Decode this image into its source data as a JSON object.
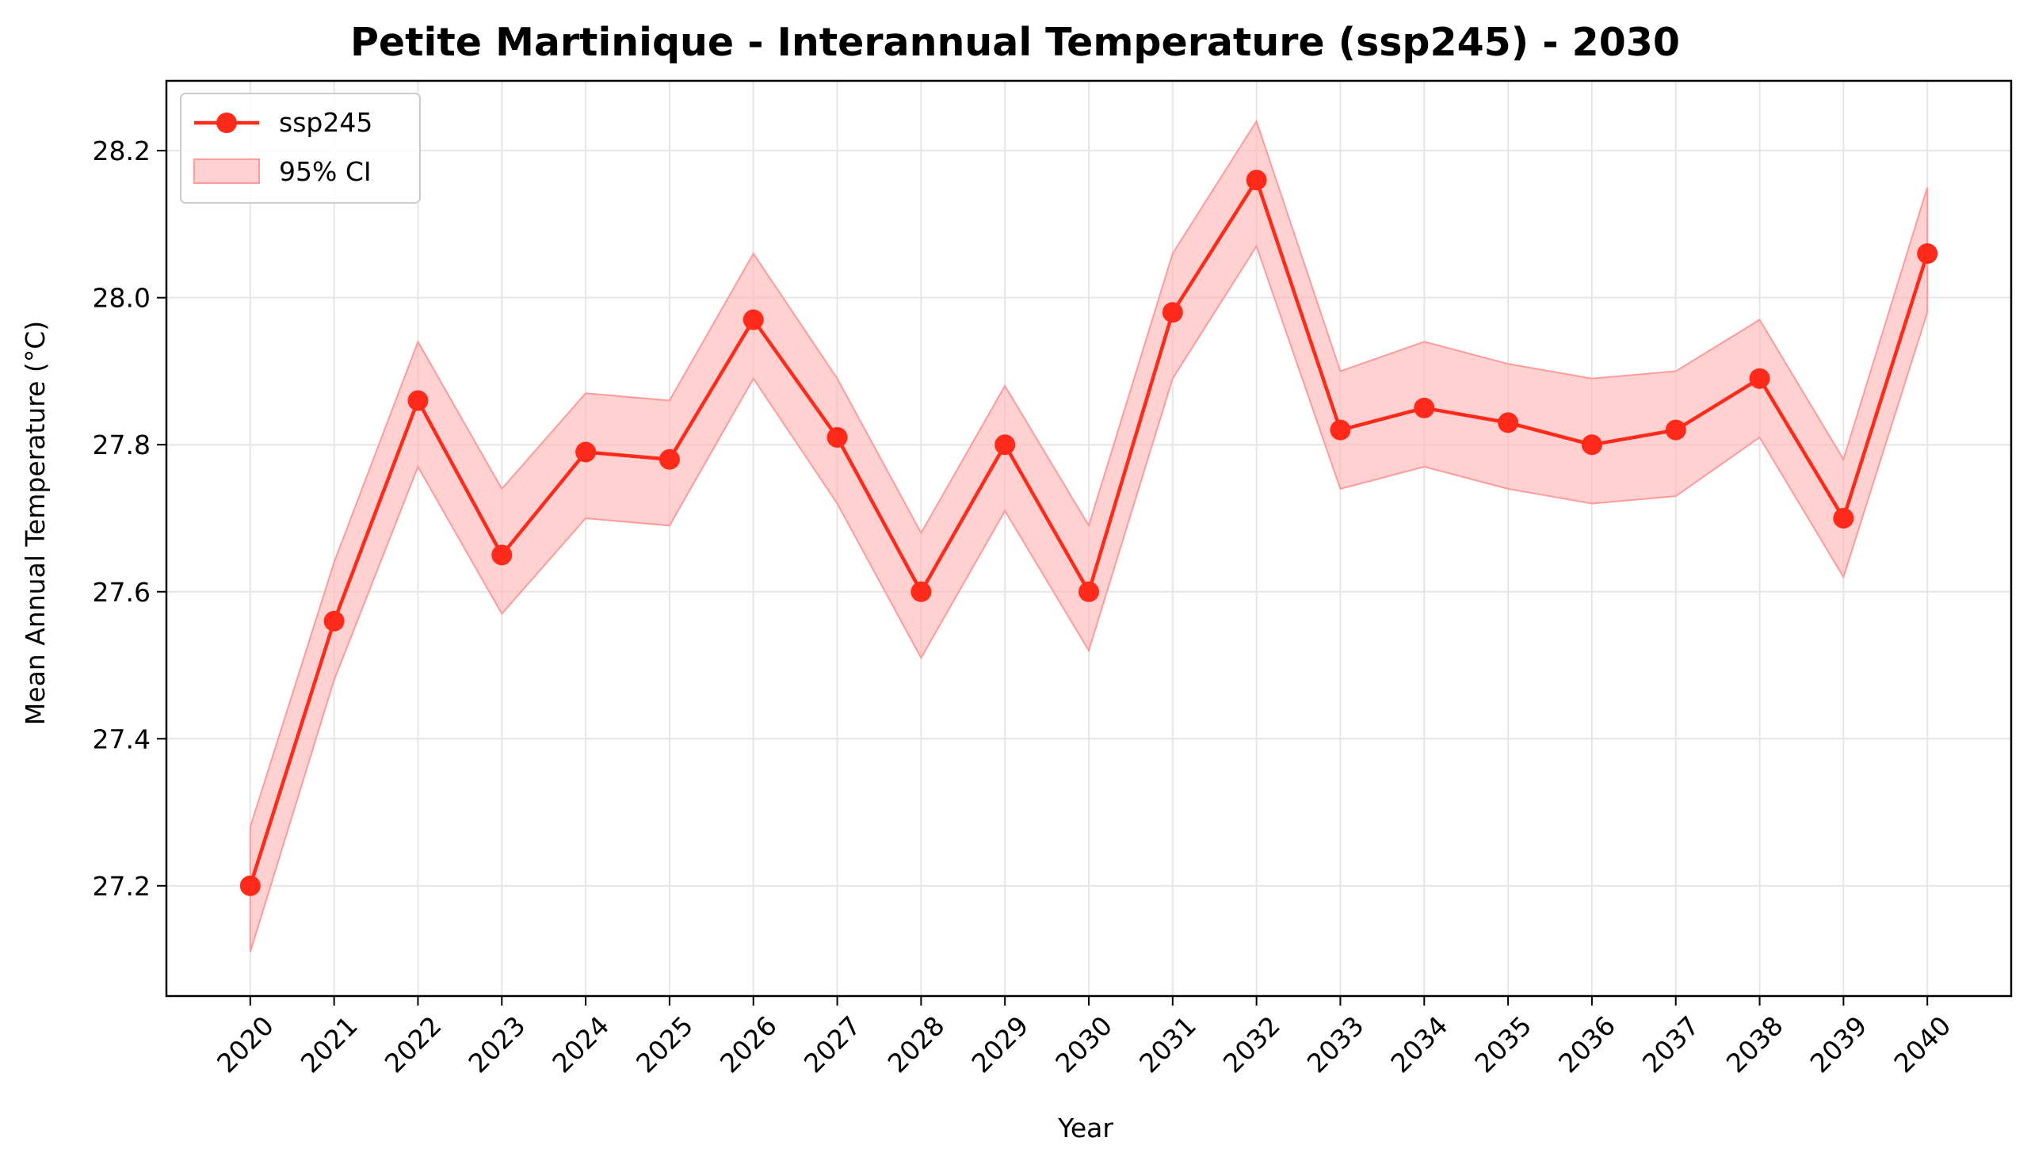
{
  "chart_data": {
    "type": "line",
    "title": "Petite Martinique - Interannual Temperature (ssp245) - 2030",
    "xlabel": "Year",
    "ylabel": "Mean Annual Temperature (°C)",
    "x": [
      2020,
      2021,
      2022,
      2023,
      2024,
      2025,
      2026,
      2027,
      2028,
      2029,
      2030,
      2031,
      2032,
      2033,
      2034,
      2035,
      2036,
      2037,
      2038,
      2039,
      2040
    ],
    "series": [
      {
        "name": "ssp245",
        "color": "#ff2a1a",
        "values": [
          27.2,
          27.56,
          27.86,
          27.65,
          27.79,
          27.78,
          27.97,
          27.81,
          27.6,
          27.8,
          27.6,
          27.98,
          28.16,
          27.82,
          27.85,
          27.83,
          27.8,
          27.82,
          27.89,
          27.7,
          28.06
        ],
        "ci_lower": [
          27.11,
          27.48,
          27.77,
          27.57,
          27.7,
          27.69,
          27.89,
          27.72,
          27.51,
          27.71,
          27.52,
          27.89,
          28.07,
          27.74,
          27.77,
          27.74,
          27.72,
          27.73,
          27.81,
          27.62,
          27.98
        ],
        "ci_upper": [
          27.28,
          27.64,
          27.94,
          27.74,
          27.87,
          27.86,
          28.06,
          27.89,
          27.68,
          27.88,
          27.69,
          28.06,
          28.24,
          27.9,
          27.94,
          27.91,
          27.89,
          27.9,
          27.97,
          27.78,
          28.15
        ]
      }
    ],
    "ci_label": "95% CI",
    "ci_color": "#ffb3b3",
    "ylim": [
      27.05,
      28.295
    ],
    "xlim": [
      2019,
      2041
    ],
    "yticks": [
      27.2,
      27.4,
      27.6,
      27.8,
      28.0,
      28.2
    ],
    "ytick_labels": [
      "27.2",
      "27.4",
      "27.6",
      "27.8",
      "28.0",
      "28.2"
    ],
    "xtick_labels": [
      "2020",
      "2021",
      "2022",
      "2023",
      "2024",
      "2025",
      "2026",
      "2027",
      "2028",
      "2029",
      "2030",
      "2031",
      "2032",
      "2033",
      "2034",
      "2035",
      "2036",
      "2037",
      "2038",
      "2039",
      "2040"
    ],
    "grid": true,
    "legend_position": "top-left"
  }
}
